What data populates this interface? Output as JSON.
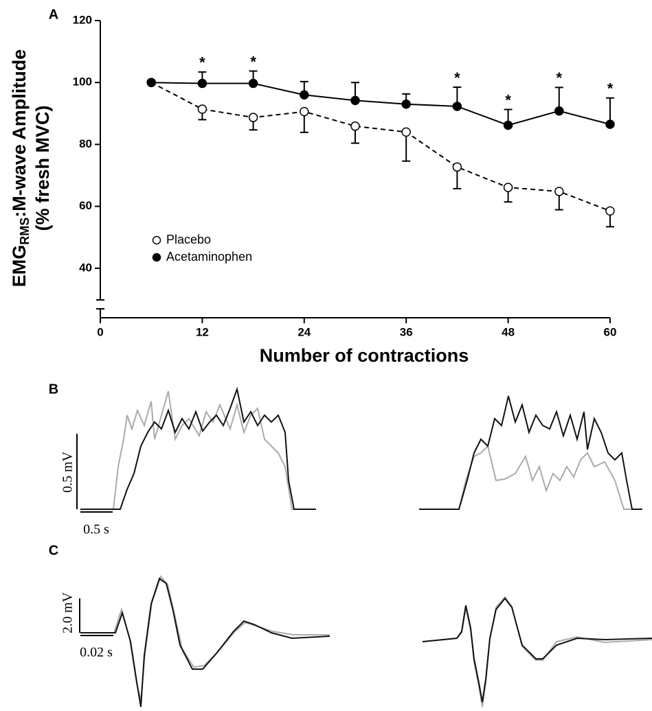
{
  "chart_data": {
    "type": "line",
    "panel_label": "A",
    "xlabel": "Number of contractions",
    "ylabel": {
      "main": "EMG",
      "sub": "RMS",
      "rest": ":M-wave Amplitude",
      "line2": "(% fresh MVC)"
    },
    "x": [
      6,
      12,
      18,
      24,
      30,
      36,
      42,
      48,
      54,
      60
    ],
    "xlim": [
      0,
      60
    ],
    "xticks": [
      0,
      12,
      24,
      36,
      48,
      60
    ],
    "ylim": [
      24,
      120
    ],
    "yticks": [
      40,
      60,
      80,
      100,
      120
    ],
    "legend": "lower-left",
    "significance_label": "*",
    "series": [
      {
        "name": "Placebo",
        "color": "#000000",
        "marker": "open",
        "dashed": true,
        "error_direction": "down",
        "values": [
          100,
          91.4,
          88.7,
          90.6,
          85.9,
          84,
          72.7,
          66.1,
          64.8,
          58.5
        ],
        "errors": [
          null,
          3.4,
          4,
          6.7,
          5.5,
          9.4,
          7,
          4.7,
          5.9,
          5.1
        ]
      },
      {
        "name": "Acetaminophen",
        "color": "#000000",
        "marker": "filled",
        "dashed": false,
        "error_direction": "up",
        "values": [
          100,
          99.7,
          99.7,
          96,
          94.2,
          93,
          92.3,
          86.2,
          90.8,
          86.5
        ],
        "errors": [
          null,
          3.7,
          4,
          4.3,
          5.8,
          3.3,
          6.2,
          5.1,
          7.6,
          8.5
        ],
        "significant": [
          false,
          true,
          true,
          false,
          false,
          false,
          true,
          true,
          true,
          true
        ]
      }
    ]
  },
  "panel_b": {
    "label": "B",
    "amplitude_bar": "0.5 mV",
    "time_bar": "0.5 s"
  },
  "panel_c": {
    "label": "C",
    "amplitude_bar": "2.0 mV",
    "time_bar": "0.02 s"
  }
}
